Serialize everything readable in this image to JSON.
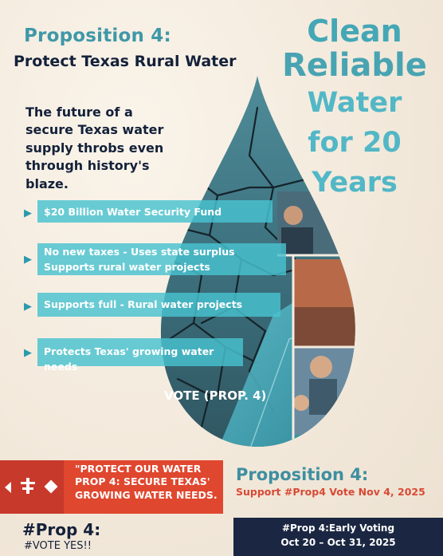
{
  "header": {
    "proposition": "Proposition 4:",
    "subtitle": "Protect Texas Rural Water"
  },
  "headline": {
    "line1": "Clean",
    "line2": "Reliable",
    "line3": "Water",
    "line4": "for 20",
    "line5": "Years"
  },
  "tagline": "The future of a secure Texas water supply throbs even through history's blaze.",
  "bullets": [
    {
      "icon": "triangle-bullet-icon",
      "lines": [
        "$20 Billion Water Security Fund"
      ]
    },
    {
      "icon": "triangle-bullet-icon",
      "lines": [
        "No new taxes - Uses state surplus",
        "Supports rural water projects"
      ]
    },
    {
      "icon": "triangle-bullet-icon",
      "lines": [
        "Supports full - Rural water projects"
      ]
    },
    {
      "icon": "triangle-bullet-icon",
      "lines": [
        "Protects Texas' growing water needs"
      ]
    }
  ],
  "vote_label": "VOTE (PROP. 4)",
  "banner": {
    "line1": "\"PROTECT OUR WATER",
    "line2": "PROP 4: SECURE TEXAS'",
    "line3": "GROWING WATER NEEDS."
  },
  "footer": {
    "proposition": "Proposition 4:",
    "support": "Support #Prop4 Vote Nov 4, 2025",
    "hashtag": "#Prop 4:",
    "vote_yes": "#VOTE YES!!",
    "early_voting": "#Prop 4:Early Voting",
    "dates": "Oct 20 – Oct 31, 2025"
  },
  "colors": {
    "background": "#f4ece0",
    "teal": "#44a7b6",
    "navy": "#1b2742",
    "red": "#e0472f"
  }
}
